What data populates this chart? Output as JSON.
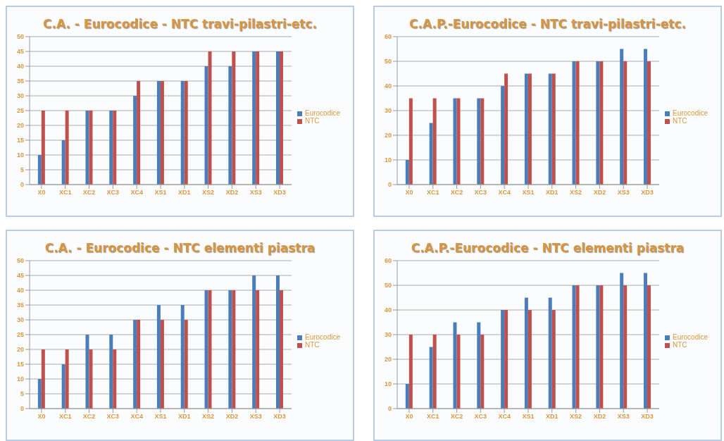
{
  "chart_data": [
    {
      "type": "bar",
      "title": "C.A. - Eurocodice - NTC travi-pilastri-etc.",
      "categories": [
        "X0",
        "XC1",
        "XC2",
        "XC3",
        "XC4",
        "XS1",
        "XD1",
        "XS2",
        "XD2",
        "XS3",
        "XD3"
      ],
      "series": [
        {
          "name": "Eurocodice",
          "color": "#4a7ebb",
          "values": [
            10,
            15,
            25,
            25,
            30,
            35,
            35,
            40,
            40,
            45,
            45
          ]
        },
        {
          "name": "NTC",
          "color": "#c0504d",
          "values": [
            25,
            25,
            25,
            25,
            35,
            35,
            35,
            45,
            45,
            45,
            45
          ]
        }
      ],
      "ylim": [
        0,
        50
      ],
      "yticks": [
        0,
        5,
        10,
        15,
        20,
        25,
        30,
        35,
        40,
        45,
        50
      ],
      "grid": "y",
      "legend": "right"
    },
    {
      "type": "bar",
      "title": "C.A.P.-Eurocodice - NTC travi-pilastri-etc.",
      "categories": [
        "X0",
        "XC1",
        "XC2",
        "XC3",
        "XC4",
        "XS1",
        "XD1",
        "XS2",
        "XD2",
        "XS3",
        "XD3"
      ],
      "series": [
        {
          "name": "Eurocodice",
          "color": "#4a7ebb",
          "values": [
            10,
            25,
            35,
            35,
            40,
            45,
            45,
            50,
            50,
            55,
            55
          ]
        },
        {
          "name": "NTC",
          "color": "#c0504d",
          "values": [
            35,
            35,
            35,
            35,
            45,
            45,
            45,
            50,
            50,
            50,
            50
          ]
        }
      ],
      "ylim": [
        0,
        60
      ],
      "yticks": [
        0,
        10,
        20,
        30,
        40,
        50,
        60
      ],
      "grid": "y",
      "legend": "right"
    },
    {
      "type": "bar",
      "title": "C.A. - Eurocodice - NTC elementi piastra",
      "categories": [
        "X0",
        "XC1",
        "XC2",
        "XC3",
        "XC4",
        "XS1",
        "XD1",
        "XS2",
        "XD2",
        "XS3",
        "XD3"
      ],
      "series": [
        {
          "name": "Eurocodice",
          "color": "#4a7ebb",
          "values": [
            10,
            15,
            25,
            25,
            30,
            35,
            35,
            40,
            40,
            45,
            45
          ]
        },
        {
          "name": "NTC",
          "color": "#c0504d",
          "values": [
            20,
            20,
            20,
            20,
            30,
            30,
            30,
            40,
            40,
            40,
            40
          ]
        }
      ],
      "ylim": [
        0,
        50
      ],
      "yticks": [
        0,
        5,
        10,
        15,
        20,
        25,
        30,
        35,
        40,
        45,
        50
      ],
      "grid": "y",
      "legend": "right"
    },
    {
      "type": "bar",
      "title": "C.A.P.-Eurocodice - NTC elementi piastra",
      "categories": [
        "X0",
        "XC1",
        "XC2",
        "XC3",
        "XC4",
        "XS1",
        "XD1",
        "XS2",
        "XD2",
        "XS3",
        "XD3"
      ],
      "series": [
        {
          "name": "Eurocodice",
          "color": "#4a7ebb",
          "values": [
            10,
            25,
            35,
            35,
            40,
            45,
            45,
            50,
            50,
            55,
            55
          ]
        },
        {
          "name": "NTC",
          "color": "#c0504d",
          "values": [
            30,
            30,
            30,
            30,
            40,
            40,
            40,
            50,
            50,
            50,
            50
          ]
        }
      ],
      "ylim": [
        0,
        60
      ],
      "yticks": [
        0,
        10,
        20,
        30,
        40,
        50,
        60
      ],
      "grid": "y",
      "legend": "right"
    }
  ]
}
